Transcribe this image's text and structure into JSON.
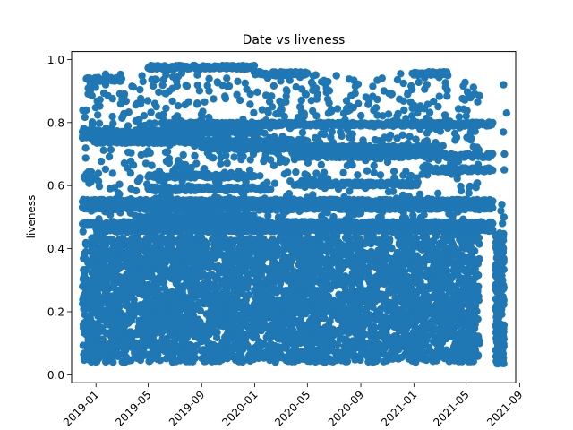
{
  "chart_data": {
    "type": "scatter",
    "title": "Date vs liveness",
    "xlabel": "",
    "ylabel": "liveness",
    "xlim": [
      "2018-11-06",
      "2021-08-23"
    ],
    "ylim": [
      -0.025,
      1.025
    ],
    "x_ticks": [
      "2019-01",
      "2019-05",
      "2019-09",
      "2020-01",
      "2020-05",
      "2020-09",
      "2021-01",
      "2021-05",
      "2021-09"
    ],
    "y_ticks": [
      "0.0",
      "0.2",
      "0.4",
      "0.6",
      "0.8",
      "1.0"
    ],
    "color": "#1f77b4",
    "grid": false,
    "x_range": [
      "2018-12-01",
      "2021-07-27"
    ],
    "y_range": [
      0.02,
      0.98
    ],
    "dense_band": [
      0.04,
      0.44
    ],
    "horizontal_bands": [
      {
        "y": 0.975,
        "x_start": "2019-05-01",
        "x_end": "2019-12-31"
      },
      {
        "y": 0.955,
        "x_start": "2019-12-31",
        "x_end": "2020-05-01"
      },
      {
        "y": 0.955,
        "x_start": "2021-01-01",
        "x_end": "2021-03-20"
      },
      {
        "y": 0.937,
        "x_start": "2018-12-10",
        "x_end": "2019-03-01"
      },
      {
        "y": 0.795,
        "x_start": "2019-06-01",
        "x_end": "2021-07-01"
      },
      {
        "y": 0.77,
        "x_start": "2018-12-01",
        "x_end": "2020-01-15"
      },
      {
        "y": 0.755,
        "x_start": "2018-12-01",
        "x_end": "2019-09-01"
      },
      {
        "y": 0.74,
        "x_start": "2019-01-01",
        "x_end": "2020-05-01"
      },
      {
        "y": 0.72,
        "x_start": "2019-09-01",
        "x_end": "2021-03-01"
      },
      {
        "y": 0.695,
        "x_start": "2020-04-01",
        "x_end": "2021-07-01"
      },
      {
        "y": 0.65,
        "x_start": "2021-02-01",
        "x_end": "2021-07-01"
      },
      {
        "y": 0.63,
        "x_start": "2019-05-01",
        "x_end": "2020-01-01"
      },
      {
        "y": 0.605,
        "x_start": "2020-04-01",
        "x_end": "2021-01-10"
      },
      {
        "y": 0.59,
        "x_start": "2019-05-01",
        "x_end": "2020-02-01"
      },
      {
        "y": 0.55,
        "x_start": "2018-12-01",
        "x_end": "2021-07-01"
      },
      {
        "y": 0.53,
        "x_start": "2018-12-01",
        "x_end": "2021-07-01"
      },
      {
        "y": 0.5,
        "x_start": "2019-04-01",
        "x_end": "2020-01-01"
      },
      {
        "y": 0.48,
        "x_start": "2018-12-01",
        "x_end": "2021-07-01"
      },
      {
        "y": 0.46,
        "x_start": "2019-01-01",
        "x_end": "2021-07-01"
      }
    ]
  }
}
